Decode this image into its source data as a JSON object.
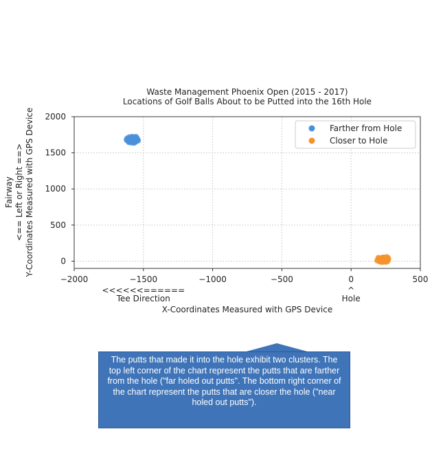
{
  "chart_data": {
    "type": "scatter",
    "title": "Waste Management Phoenix Open (2015 - 2017)",
    "subtitle": "Locations of Golf Balls About to be Putted into the 16th Hole",
    "xlabel": "X-Coordinates Measured with GPS Device",
    "ylabel": "Y-Coordinates Measured with GPS Device",
    "ylabel_extra": [
      "Fairway",
      "<== Left or Right ==>"
    ],
    "x_annotations": [
      {
        "x": -1500,
        "lines": [
          "<<<<<<======",
          "Tee Direction"
        ]
      },
      {
        "x": 0,
        "lines": [
          "^",
          "Hole"
        ]
      }
    ],
    "xlim": [
      -2000,
      500
    ],
    "ylim": [
      -100,
      2000
    ],
    "xticks": [
      -2000,
      -1500,
      -1000,
      -500,
      0,
      500
    ],
    "xtick_labels": [
      "−2000",
      "−1500",
      "−1000",
      "−500",
      "0",
      "500"
    ],
    "yticks": [
      0,
      500,
      1000,
      1500,
      2000
    ],
    "ytick_labels": [
      "0",
      "500",
      "1000",
      "1500",
      "2000"
    ],
    "grid": true,
    "legend_position": "top-right",
    "series": [
      {
        "name": "Farther from Hole",
        "color": "#4a90d9",
        "points": [
          [
            -1620,
            1680
          ],
          [
            -1610,
            1670
          ],
          [
            -1600,
            1690
          ],
          [
            -1595,
            1660
          ],
          [
            -1590,
            1700
          ],
          [
            -1585,
            1675
          ],
          [
            -1580,
            1690
          ],
          [
            -1575,
            1655
          ],
          [
            -1570,
            1710
          ],
          [
            -1565,
            1680
          ],
          [
            -1560,
            1695
          ],
          [
            -1555,
            1665
          ],
          [
            -1550,
            1705
          ],
          [
            -1548,
            1680
          ],
          [
            -1545,
            1690
          ],
          [
            -1540,
            1670
          ],
          [
            -1605,
            1650
          ],
          [
            -1590,
            1645
          ],
          [
            -1570,
            1640
          ],
          [
            -1555,
            1720
          ],
          [
            -1580,
            1720
          ],
          [
            -1615,
            1700
          ],
          [
            -1600,
            1715
          ],
          [
            -1560,
            1650
          ]
        ]
      },
      {
        "name": "Closer to Hole",
        "color": "#f5922b",
        "points": [
          [
            190,
            10
          ],
          [
            200,
            30
          ],
          [
            205,
            0
          ],
          [
            210,
            20
          ],
          [
            215,
            40
          ],
          [
            220,
            10
          ],
          [
            225,
            -10
          ],
          [
            228,
            30
          ],
          [
            232,
            15
          ],
          [
            236,
            45
          ],
          [
            240,
            0
          ],
          [
            244,
            25
          ],
          [
            248,
            50
          ],
          [
            252,
            10
          ],
          [
            256,
            35
          ],
          [
            260,
            20
          ],
          [
            264,
            45
          ],
          [
            268,
            30
          ],
          [
            212,
            -5
          ],
          [
            230,
            50
          ],
          [
            250,
            -8
          ],
          [
            258,
            55
          ],
          [
            262,
            0
          ],
          [
            198,
            45
          ]
        ]
      }
    ]
  },
  "callout": {
    "text": "The putts that made it into the hole exhibit two clusters. The top left corner of the chart represent the putts that are farther from the hole (\"far holed out putts\". The bottom right corner of the chart represent the putts that are closer the hole (\"near holed out putts\")."
  }
}
